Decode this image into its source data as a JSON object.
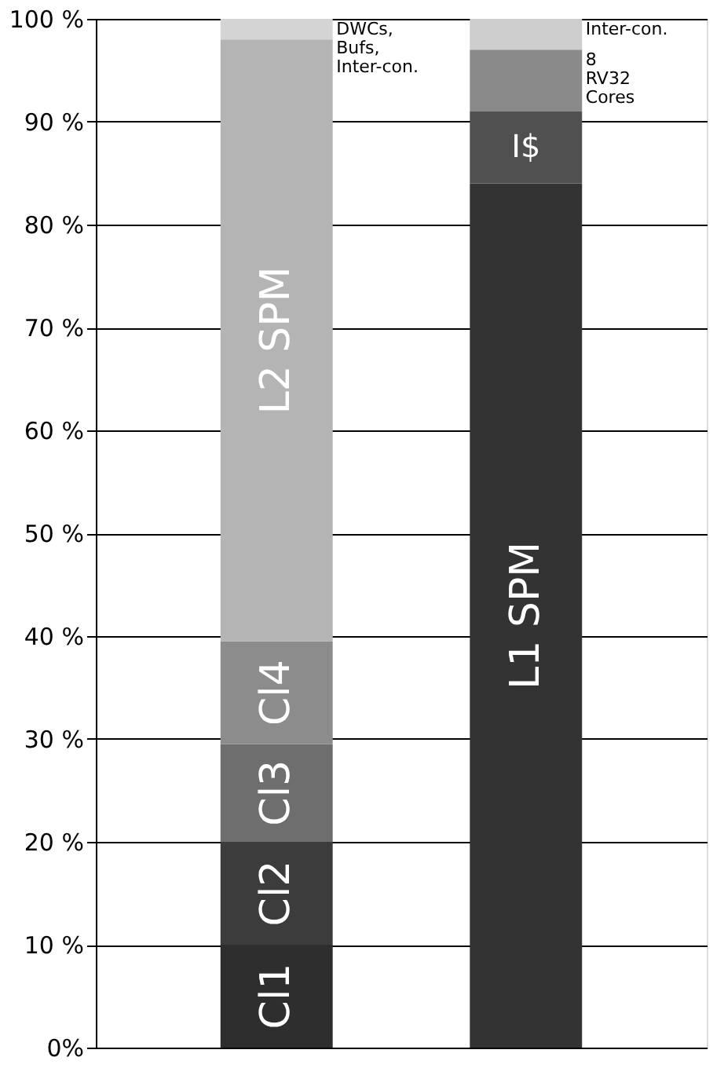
{
  "chart_data": {
    "type": "bar",
    "stacked": true,
    "categories": [
      null,
      null
    ],
    "series": [
      {
        "name": "Cl1",
        "color": "#2e2e2e",
        "values": [
          10,
          null
        ]
      },
      {
        "name": "Cl2",
        "color": "#3c3c3c",
        "values": [
          10,
          null
        ]
      },
      {
        "name": "Cl3",
        "color": "#6e6e6e",
        "values": [
          9.5,
          null
        ]
      },
      {
        "name": "Cl4",
        "color": "#8c8c8c",
        "values": [
          10,
          null
        ]
      },
      {
        "name": "L2 SPM",
        "color": "#b4b4b4",
        "values": [
          58.5,
          null
        ]
      },
      {
        "name": "DWCs, Bufs, Inter-con.",
        "color": "#d4d4d4",
        "values": [
          2,
          null
        ]
      },
      {
        "name": "L1 SPM",
        "color": "#333333",
        "values": [
          null,
          84
        ]
      },
      {
        "name": "I$",
        "color": "#505050",
        "values": [
          null,
          7
        ]
      },
      {
        "name": "8 RV32 Cores",
        "color": "#8a8a8a",
        "values": [
          null,
          6
        ]
      },
      {
        "name": "Inter-con.",
        "color": "#cdcdcd",
        "values": [
          null,
          3
        ]
      }
    ],
    "ylim": [
      0,
      100
    ],
    "yticks": [
      {
        "value": 0,
        "label": "0%"
      },
      {
        "value": 10,
        "label": "10 %"
      },
      {
        "value": 20,
        "label": "20 %"
      },
      {
        "value": 30,
        "label": "30 %"
      },
      {
        "value": 40,
        "label": "40 %"
      },
      {
        "value": 50,
        "label": "50 %"
      },
      {
        "value": 60,
        "label": "60 %"
      },
      {
        "value": 70,
        "label": "70 %"
      },
      {
        "value": 80,
        "label": "80 %"
      },
      {
        "value": 90,
        "label": "90 %"
      },
      {
        "value": 100,
        "label": "100 %"
      }
    ],
    "grid": "y",
    "legend": false
  }
}
